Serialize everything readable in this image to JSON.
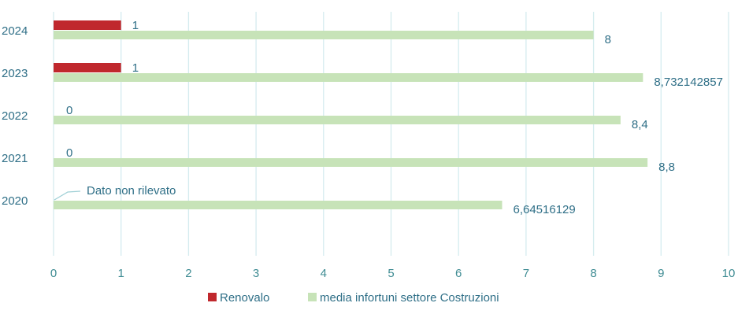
{
  "chart_data": {
    "type": "bar",
    "orientation": "horizontal",
    "categories": [
      "2024",
      "2023",
      "2022",
      "2021",
      "2020"
    ],
    "series": [
      {
        "name": "Renovalo",
        "color": "#c0282d",
        "values": [
          1,
          1,
          0,
          0,
          null
        ],
        "labels": [
          "1",
          "1",
          "0",
          "0",
          ""
        ]
      },
      {
        "name": "media infortuni settore Costruzioni",
        "color": "#c7e3b8",
        "values": [
          8,
          8.732142857,
          8.4,
          8.8,
          6.64516129
        ],
        "labels": [
          "8",
          "8,732142857",
          "8,4",
          "8,8",
          "6,64516129"
        ]
      }
    ],
    "xlim": [
      0,
      10
    ],
    "xticks": [
      0,
      1,
      2,
      3,
      4,
      5,
      6,
      7,
      8,
      9,
      10
    ],
    "grid": "vertical",
    "legend_position": "bottom",
    "annotation": {
      "text": "Dato non rilevato",
      "category": "2020",
      "series": "Renovalo"
    },
    "title": "",
    "xlabel": "",
    "ylabel": ""
  }
}
